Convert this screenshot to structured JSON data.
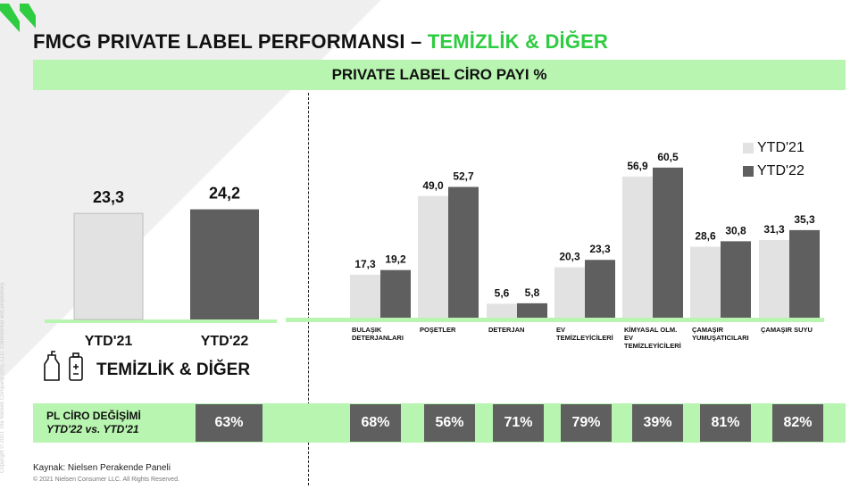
{
  "header": {
    "title_main": "FMCG PRIVATE LABEL PERFORMANSI – ",
    "title_accent": "TEMİZLİK & DİĞER",
    "subtitle": "PRIVATE LABEL CİRO PAYI %"
  },
  "category_label": "TEMİZLİK & DİĞER",
  "legend": {
    "ytd21": "YTD'21",
    "ytd22": "YTD'22"
  },
  "colors": {
    "ytd21": "#e2e2e2",
    "ytd22": "#5f5f5f",
    "accent_green": "#2ecc40",
    "band_green": "#b8f5b0"
  },
  "pl_change": {
    "label_line1": "PL CİRO DEĞİŞİMİ",
    "label_line2": "YTD'22 vs. YTD'21",
    "values": [
      "63%",
      "68%",
      "56%",
      "71%",
      "79%",
      "39%",
      "81%",
      "82%"
    ]
  },
  "chart_data": [
    {
      "type": "bar",
      "categories": [
        "YTD'21",
        "YTD'22"
      ],
      "values": [
        23.3,
        24.2
      ],
      "value_labels": [
        "23,3",
        "24,2"
      ]
    },
    {
      "type": "bar",
      "categories": [
        [
          "BULAŞIK",
          "DETERJANLARI"
        ],
        [
          "POŞETLER"
        ],
        [
          "DETERJAN"
        ],
        [
          "EV",
          "TEMİZLEYİCİLERİ"
        ],
        [
          "KİMYASAL OLM.",
          "EV",
          "TEMİZLEYİCİLERİ"
        ],
        [
          "ÇAMAŞIR",
          "YUMUŞATICILARI"
        ],
        [
          "ÇAMAŞIR SUYU"
        ]
      ],
      "series": [
        {
          "name": "YTD'21",
          "values": [
            17.3,
            49.0,
            5.6,
            20.3,
            56.9,
            28.6,
            31.3
          ],
          "labels": [
            "17,3",
            "49,0",
            "5,6",
            "20,3",
            "56,9",
            "28,6",
            "31,3"
          ]
        },
        {
          "name": "YTD'22",
          "values": [
            19.2,
            52.7,
            5.8,
            23.3,
            60.5,
            30.8,
            35.3
          ],
          "labels": [
            "19,2",
            "52,7",
            "5,8",
            "23,3",
            "60,5",
            "30,8",
            "35,3"
          ]
        }
      ]
    }
  ],
  "footer": {
    "source": "Kaynak: Nielsen Perakende Paneli",
    "copyright": "© 2021 Nielsen Consumer LLC. All Rights Reserved."
  },
  "side_notice": "Copyright © 2021 The Nielsen Company (US), LLC. Confidential and proprietary."
}
